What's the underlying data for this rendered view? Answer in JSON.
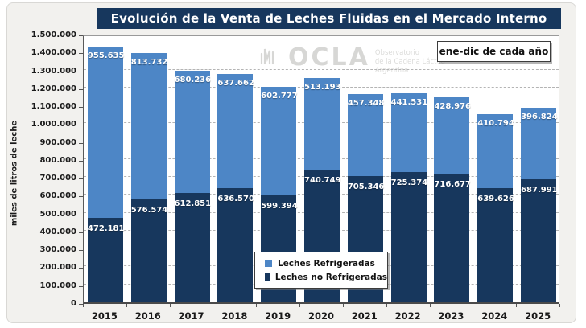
{
  "title": "Evolución de la Venta de Leches Fluidas en el Mercado Interno",
  "annotation_box": "ene-dic de cada año",
  "y_axis_title": "miles de litros de leche",
  "watermark": {
    "logo": "ocla-logo-icon",
    "name": "OCLA",
    "org_line1": "Observatorio",
    "org_line2": "de la Cadena Láctea",
    "org_line3": "Argentina"
  },
  "colors": {
    "refrigeradas": "#4d86c6",
    "no_refrigeradas": "#17375d",
    "title_bg": "#17375d",
    "canvas_bg": "#f2f1ee",
    "plot_bg": "#ffffff"
  },
  "chart_data": {
    "type": "bar",
    "stacked": true,
    "title": "Evolución de la Venta de Leches Fluidas en el Mercado Interno",
    "ylabel": "miles de litros de leche",
    "ylim": [
      0,
      1500000
    ],
    "ytick_step": 100000,
    "grid": "dashed-horizontal",
    "legend_position": "bottom-center-inside",
    "categories": [
      "2015",
      "2016",
      "2017",
      "2018",
      "2019",
      "2020",
      "2021",
      "2022",
      "2023",
      "2024",
      "2025"
    ],
    "series": [
      {
        "name": "Leches Refrigeradas",
        "color": "#4d86c6",
        "stack_position": "top",
        "values": [
          955635,
          813732,
          680236,
          637662,
          602777,
          513193,
          457348,
          441531,
          428976,
          410794,
          396824
        ]
      },
      {
        "name": "Leches no Refrigeradas",
        "color": "#17375d",
        "stack_position": "bottom",
        "values": [
          472181,
          576574,
          612851,
          636570,
          599394,
          740749,
          705346,
          725374,
          716677,
          639626,
          687991
        ]
      }
    ]
  }
}
